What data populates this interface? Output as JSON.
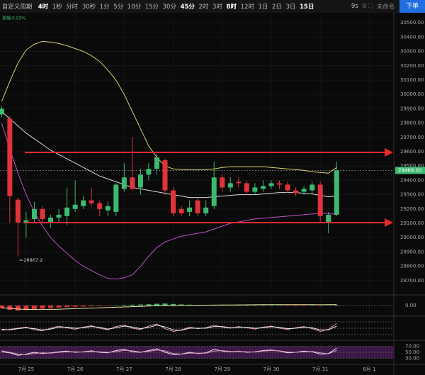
{
  "toolbar": {
    "menu": "自定义周期",
    "intervals": [
      "4时",
      "1秒",
      "分时",
      "30秒",
      "1分",
      "5分",
      "10分",
      "15分",
      "30分",
      "45分",
      "2时",
      "3时",
      "8时",
      "12时",
      "1日",
      "2日",
      "3日",
      "15日"
    ],
    "active": [
      0,
      9,
      12,
      17
    ],
    "timer": "9s",
    "layout_name": "未命名",
    "order_button": "下单"
  },
  "chart_data": {
    "type": "candlestick",
    "amplitude_label": "振幅:0.93%",
    "xlim": [
      -0.2,
      48
    ],
    "xticks": [
      {
        "value": 3,
        "label": "7月 25"
      },
      {
        "value": 9,
        "label": "7月 26"
      },
      {
        "value": 15,
        "label": "7月 27"
      },
      {
        "value": 21,
        "label": "7月 28"
      },
      {
        "value": 27,
        "label": "7月 29"
      },
      {
        "value": 33,
        "label": "7月 30"
      },
      {
        "value": 39,
        "label": "7月 31"
      },
      {
        "value": 45,
        "label": "8月 1"
      }
    ],
    "ylim": [
      28610,
      30570
    ],
    "yticks": [
      {
        "value": 28700,
        "label": "28700.00"
      },
      {
        "value": 28800,
        "label": "28800.00"
      },
      {
        "value": 28900,
        "label": "28900.00"
      },
      {
        "value": 29000,
        "label": "29000.00"
      },
      {
        "value": 29100,
        "label": "29100.00"
      },
      {
        "value": 29200,
        "label": "29200.00"
      },
      {
        "value": 29300,
        "label": "29300.00"
      },
      {
        "value": 29400,
        "label": "29400.00"
      },
      {
        "value": 29500,
        "label": "29500.00"
      },
      {
        "value": 29600,
        "label": "29600.00"
      },
      {
        "value": 29700,
        "label": "29700.00"
      },
      {
        "value": 29800,
        "label": "29800.00"
      },
      {
        "value": 29900,
        "label": "29900.00"
      },
      {
        "value": 30000,
        "label": "30000.00"
      },
      {
        "value": 30100,
        "label": "30100.00"
      },
      {
        "value": 30200,
        "label": "30200.00"
      },
      {
        "value": 30300,
        "label": "30300.00"
      },
      {
        "value": 30400,
        "label": "30400.00"
      },
      {
        "value": 30500,
        "label": "30500.00"
      }
    ],
    "up_color": "#3cba70",
    "down_color": "#e0333a",
    "candles": [
      {
        "o": 29860,
        "h": 29920,
        "l": 29840,
        "c": 29900
      },
      {
        "o": 29830,
        "h": 29850,
        "l": 29100,
        "c": 29290
      },
      {
        "o": 29265,
        "h": 29280,
        "l": 28867.2,
        "c": 29105
      },
      {
        "o": 29100,
        "h": 29180,
        "l": 29000,
        "c": 29120
      },
      {
        "o": 29130,
        "h": 29250,
        "l": 29100,
        "c": 29200
      },
      {
        "o": 29200,
        "h": 29220,
        "l": 29100,
        "c": 29130
      },
      {
        "o": 29110,
        "h": 29160,
        "l": 29070,
        "c": 29140
      },
      {
        "o": 29140,
        "h": 29200,
        "l": 29100,
        "c": 29160
      },
      {
        "o": 29150,
        "h": 29350,
        "l": 29090,
        "c": 29210
      },
      {
        "o": 29200,
        "h": 29400,
        "l": 29180,
        "c": 29230
      },
      {
        "o": 29220,
        "h": 29290,
        "l": 29200,
        "c": 29260
      },
      {
        "o": 29260,
        "h": 29350,
        "l": 29220,
        "c": 29240
      },
      {
        "o": 29240,
        "h": 29260,
        "l": 29150,
        "c": 29200
      },
      {
        "o": 29190,
        "h": 29250,
        "l": 29150,
        "c": 29220
      },
      {
        "o": 29180,
        "h": 29380,
        "l": 29150,
        "c": 29370
      },
      {
        "o": 29340,
        "h": 29520,
        "l": 29320,
        "c": 29420
      },
      {
        "o": 29420,
        "h": 29700,
        "l": 29330,
        "c": 29340
      },
      {
        "o": 29350,
        "h": 29480,
        "l": 29300,
        "c": 29440
      },
      {
        "o": 29440,
        "h": 29520,
        "l": 29400,
        "c": 29480
      },
      {
        "o": 29480,
        "h": 29580,
        "l": 29440,
        "c": 29560
      },
      {
        "o": 29540,
        "h": 29550,
        "l": 29300,
        "c": 29330
      },
      {
        "o": 29330,
        "h": 29350,
        "l": 29150,
        "c": 29170
      },
      {
        "o": 29200,
        "h": 29220,
        "l": 29150,
        "c": 29170
      },
      {
        "o": 29180,
        "h": 29260,
        "l": 29150,
        "c": 29210
      },
      {
        "o": 29260,
        "h": 29280,
        "l": 29150,
        "c": 29170
      },
      {
        "o": 29170,
        "h": 29260,
        "l": 29150,
        "c": 29210
      },
      {
        "o": 29220,
        "h": 29530,
        "l": 29200,
        "c": 29420
      },
      {
        "o": 29420,
        "h": 29440,
        "l": 29320,
        "c": 29350
      },
      {
        "o": 29350,
        "h": 29420,
        "l": 29320,
        "c": 29380
      },
      {
        "o": 29390,
        "h": 29420,
        "l": 29350,
        "c": 29380
      },
      {
        "o": 29380,
        "h": 29400,
        "l": 29300,
        "c": 29320
      },
      {
        "o": 29320,
        "h": 29380,
        "l": 29300,
        "c": 29350
      },
      {
        "o": 29340,
        "h": 29400,
        "l": 29320,
        "c": 29360
      },
      {
        "o": 29360,
        "h": 29400,
        "l": 29340,
        "c": 29380
      },
      {
        "o": 29380,
        "h": 29400,
        "l": 29340,
        "c": 29370
      },
      {
        "o": 29370,
        "h": 29390,
        "l": 29310,
        "c": 29330
      },
      {
        "o": 29330,
        "h": 29350,
        "l": 29290,
        "c": 29310
      },
      {
        "o": 29320,
        "h": 29360,
        "l": 29300,
        "c": 29340
      },
      {
        "o": 29330,
        "h": 29390,
        "l": 29310,
        "c": 29370
      },
      {
        "o": 29370,
        "h": 29390,
        "l": 29100,
        "c": 29150
      },
      {
        "o": 29110,
        "h": 29180,
        "l": 29030,
        "c": 29160
      },
      {
        "o": 29160,
        "h": 29530,
        "l": 29150,
        "c": 29469
      }
    ],
    "overlays": [
      {
        "color": "#d8d070",
        "values": [
          29950,
          30090,
          30220,
          30310,
          30350,
          30370,
          30365,
          30355,
          30340,
          30320,
          30300,
          30270,
          30230,
          30170,
          30100,
          30000,
          29880,
          29760,
          29640,
          29560,
          29500,
          29480,
          29475,
          29475,
          29475,
          29475,
          29480,
          29490,
          29495,
          29495,
          29495,
          29495,
          29495,
          29490,
          29485,
          29480,
          29475,
          29470,
          29460,
          29455,
          29450,
          29490
        ]
      },
      {
        "color": "#d8d8d8",
        "values": [
          29880,
          29830,
          29780,
          29730,
          29690,
          29650,
          29610,
          29580,
          29550,
          29520,
          29490,
          29460,
          29430,
          29410,
          29390,
          29370,
          29350,
          29340,
          29330,
          29320,
          29310,
          29300,
          29290,
          29280,
          29280,
          29280,
          29285,
          29290,
          29295,
          29300,
          29300,
          29300,
          29305,
          29310,
          29315,
          29315,
          29315,
          29310,
          29305,
          29295,
          29285,
          29290
        ]
      },
      {
        "color": "#c050c8",
        "values": [
          29800,
          29620,
          29450,
          29300,
          29180,
          29080,
          29000,
          28940,
          28890,
          28840,
          28800,
          28770,
          28740,
          28715,
          28710,
          28720,
          28740,
          28800,
          28870,
          28930,
          28970,
          28990,
          29010,
          29020,
          29030,
          29040,
          29060,
          29080,
          29100,
          29110,
          29120,
          29130,
          29135,
          29140,
          29145,
          29150,
          29155,
          29160,
          29165,
          29170,
          29170,
          29160
        ]
      }
    ],
    "hlines": [
      29595,
      29105
    ],
    "hline_color": "#e8282b",
    "last_price": {
      "value": 29469,
      "label": "29469.00"
    },
    "low_mark": {
      "index": 2,
      "value": 28867.2
    },
    "panels": [
      {
        "type": "macd",
        "ylim": [
          -130,
          130
        ],
        "yticks": [
          {
            "value": 0,
            "label": "0.00"
          }
        ],
        "values": [
          -40,
          -60,
          -70,
          -65,
          -55,
          -45,
          -35,
          -28,
          -22,
          -18,
          -14,
          -10,
          -8,
          -5,
          4,
          8,
          12,
          14,
          18,
          25,
          28,
          22,
          16,
          12,
          8,
          6,
          8,
          10,
          10,
          9,
          8,
          7,
          6,
          5,
          4,
          -6,
          -8,
          -5,
          4,
          -4,
          3,
          8
        ],
        "line": {
          "color": "#e8e0a0",
          "values": [
            -30,
            -40,
            -50,
            -54,
            -56,
            -56,
            -54,
            -52,
            -48,
            -44,
            -40,
            -36,
            -32,
            -28,
            -24,
            -20,
            -16,
            -12,
            -8,
            -4,
            -2,
            0,
            2,
            3,
            4,
            5,
            6,
            7,
            8,
            9,
            10,
            11,
            12,
            12,
            13,
            13,
            12,
            12,
            12,
            11,
            12,
            14
          ]
        }
      },
      {
        "type": "oscillator",
        "ylim": [
          0,
          100
        ],
        "guides": [
          20,
          50,
          80
        ],
        "lines": [
          {
            "color": "#e090c0",
            "values": [
              40,
              45,
              50,
              55,
              42,
              38,
              50,
              60,
              52,
              45,
              55,
              62,
              50,
              42,
              58,
              65,
              50,
              44,
              60,
              70,
              48,
              35,
              42,
              55,
              48,
              52,
              64,
              55,
              50,
              58,
              52,
              46,
              55,
              60,
              50,
              44,
              52,
              58,
              48,
              35,
              45,
              72
            ]
          },
          {
            "color": "#e8e8e8",
            "values": [
              45,
              42,
              48,
              52,
              48,
              42,
              46,
              55,
              55,
              50,
              52,
              58,
              54,
              46,
              52,
              60,
              56,
              48,
              54,
              64,
              56,
              42,
              40,
              50,
              50,
              50,
              58,
              58,
              52,
              55,
              54,
              50,
              52,
              57,
              54,
              48,
              50,
              55,
              52,
              42,
              42,
              60
            ]
          }
        ]
      },
      {
        "type": "rsi",
        "ylim": [
          14,
          86
        ],
        "band": [
          30,
          70
        ],
        "band_color": "#3c1848",
        "yticks": [
          {
            "value": 30,
            "label": "30.00"
          },
          {
            "value": 50,
            "label": "50.00"
          },
          {
            "value": 70,
            "label": "70.00"
          }
        ],
        "lines": [
          {
            "color": "#e8e8e8",
            "values": [
              52,
              48,
              40,
              44,
              50,
              46,
              48,
              52,
              54,
              50,
              52,
              55,
              50,
              48,
              56,
              60,
              52,
              50,
              56,
              62,
              50,
              42,
              44,
              50,
              46,
              48,
              60,
              54,
              52,
              54,
              50,
              52,
              56,
              58,
              54,
              48,
              50,
              54,
              52,
              44,
              46,
              64
            ]
          },
          {
            "color": "#e090c0",
            "values": [
              55,
              50,
              44,
              42,
              46,
              48,
              47,
              50,
              52,
              52,
              51,
              53,
              52,
              50,
              52,
              57,
              55,
              51,
              53,
              58,
              55,
              46,
              44,
              47,
              47,
              47,
              54,
              56,
              53,
              53,
              52,
              51,
              54,
              56,
              55,
              51,
              50,
              52,
              53,
              48,
              45,
              56
            ]
          }
        ]
      }
    ]
  }
}
